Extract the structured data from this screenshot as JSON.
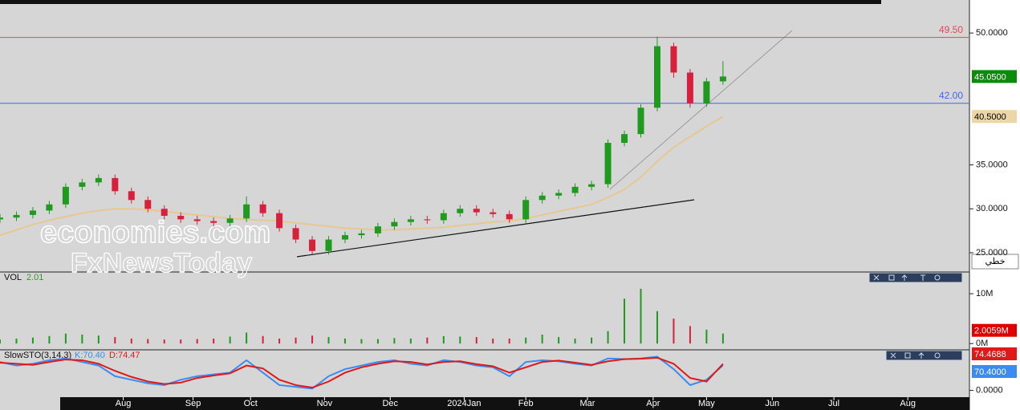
{
  "chart_data": [
    {
      "type": "candlestick",
      "watermark": [
        "economies.com",
        "FxNewsToday"
      ],
      "x": [
        0,
        4,
        8,
        12,
        16,
        20,
        24,
        28,
        32,
        36,
        40,
        44,
        48,
        52,
        56,
        60,
        64,
        68,
        72,
        76,
        80,
        84,
        88,
        92,
        96,
        100,
        104,
        108,
        112,
        116,
        120,
        124,
        128,
        132,
        136,
        140,
        144,
        148,
        152,
        156,
        160,
        164,
        168,
        172,
        176
      ],
      "open": [
        28.8,
        29,
        29.3,
        29.8,
        30.5,
        32.5,
        33,
        33.5,
        32,
        31,
        30,
        29.2,
        28.8,
        28.6,
        28.4,
        28.9,
        30.5,
        29.5,
        27.8,
        26.5,
        25.2,
        26.5,
        27,
        27.2,
        28,
        28.5,
        28.8,
        28.7,
        29.5,
        30,
        29.6,
        29.4,
        28.8,
        31,
        31.5,
        31.8,
        32.5,
        32.8,
        37.5,
        38.5,
        41.5,
        48.5,
        45.5,
        42,
        44.5
      ],
      "high": [
        29.4,
        29.7,
        30.2,
        30.9,
        32.9,
        33.4,
        33.9,
        33.9,
        32.4,
        31.4,
        30.4,
        29.6,
        29.2,
        29,
        29.3,
        31.4,
        30.9,
        29.9,
        28.2,
        26.9,
        26.9,
        27.4,
        27.6,
        28.4,
        28.9,
        29.2,
        29.2,
        29.9,
        30.4,
        30.4,
        30,
        29.8,
        31.4,
        31.9,
        32.2,
        32.9,
        33.2,
        37.9,
        38.9,
        41.9,
        49.6,
        48.9,
        45.9,
        44.9,
        46.8
      ],
      "low": [
        28.4,
        28.6,
        28.9,
        29.4,
        30.1,
        32.1,
        32.6,
        31.6,
        30.6,
        29.6,
        28.8,
        28.4,
        28.2,
        28,
        28,
        28.5,
        29.1,
        27.4,
        26.1,
        24.8,
        24.8,
        26.1,
        26.6,
        26.8,
        27.6,
        28.1,
        28.3,
        28.3,
        29.1,
        29.2,
        29,
        28.4,
        28.4,
        30.6,
        31.1,
        31.4,
        32.1,
        32.4,
        37.1,
        38.1,
        41.1,
        44.9,
        41.5,
        41.6,
        44.1
      ],
      "close": [
        29,
        29.3,
        29.8,
        30.5,
        32.5,
        33,
        33.5,
        32,
        31,
        30,
        29.2,
        28.8,
        28.6,
        28.4,
        28.9,
        30.5,
        29.5,
        27.8,
        26.5,
        25.2,
        26.5,
        27,
        27.2,
        28,
        28.5,
        28.8,
        28.7,
        29.5,
        30,
        29.6,
        29.4,
        28.8,
        31,
        31.5,
        31.8,
        32.5,
        32.8,
        37.5,
        38.5,
        41.5,
        48.5,
        45.5,
        42,
        44.5,
        45.05
      ],
      "up_color": "#1f9a1f",
      "down_color": "#d8203c",
      "ma": {
        "color": "#e6c890",
        "values": [
          27,
          27.6,
          28.2,
          28.7,
          29.1,
          29.5,
          29.8,
          30,
          30,
          29.9,
          29.7,
          29.5,
          29.3,
          29.1,
          28.9,
          28.8,
          28.7,
          28.6,
          28.4,
          28.2,
          28,
          27.8,
          27.7,
          27.6,
          27.6,
          27.7,
          27.8,
          27.9,
          28.1,
          28.3,
          28.5,
          28.6,
          28.9,
          29.3,
          29.7,
          30.1,
          30.5,
          31.3,
          32.2,
          33.6,
          35.4,
          37,
          38.2,
          39.4,
          40.5
        ]
      },
      "xlim": [
        0,
        236
      ],
      "ylim": [
        22.9,
        53.3
      ],
      "yticks": [
        {
          "value": 25,
          "label": "25.0000"
        },
        {
          "value": 30,
          "label": "30.0000"
        },
        {
          "value": 35,
          "label": "35.0000"
        },
        {
          "value": 50,
          "label": "50.0000"
        }
      ],
      "hlines": [
        {
          "value": 49.5,
          "label": "49.50",
          "color": "#e04858"
        },
        {
          "value": 42,
          "label": "42.00",
          "color": "#4466ee"
        }
      ],
      "tags": [
        {
          "value": 45.05,
          "label": "45.0500",
          "color": "#0b8a0b",
          "text_color": "#ffffff"
        },
        {
          "value": 40.5,
          "label": "40.5000",
          "color": "#ecd6a6",
          "text_color": "#000000"
        }
      ],
      "scale_button": "خطي"
    },
    {
      "type": "bar",
      "title": "VOL",
      "header_value": 2.01,
      "x": [
        0,
        4,
        8,
        12,
        16,
        20,
        24,
        28,
        32,
        36,
        40,
        44,
        48,
        52,
        56,
        60,
        64,
        68,
        72,
        76,
        80,
        84,
        88,
        92,
        96,
        100,
        104,
        108,
        112,
        116,
        120,
        124,
        128,
        132,
        136,
        140,
        144,
        148,
        152,
        156,
        160,
        164,
        168,
        172,
        176
      ],
      "values": [
        0.8,
        1,
        1.2,
        1.5,
        2,
        1.8,
        1.6,
        1.3,
        1,
        0.9,
        0.8,
        0.8,
        0.9,
        1,
        1.4,
        2.2,
        1.5,
        1,
        1.2,
        1.6,
        1.3,
        1,
        0.9,
        0.9,
        1.1,
        1,
        1.2,
        1.5,
        1.4,
        1.3,
        1,
        1,
        1.2,
        1.8,
        1.3,
        1,
        1.2,
        2.5,
        9,
        11,
        6.5,
        5,
        3.5,
        2.8,
        2.0059
      ],
      "xlim": [
        0,
        236
      ],
      "ylim": [
        -1.1,
        14.2
      ],
      "yticks": [
        {
          "value": 10,
          "label": "10M"
        },
        {
          "value": 0,
          "label": "0M"
        }
      ],
      "tags": [
        {
          "value": 2.0059,
          "label": "2.0059M",
          "color": "#e00000",
          "text_color": "#ffffff"
        }
      ]
    },
    {
      "type": "line",
      "title": "SlowSTO(3,14,3)",
      "x": [
        0,
        4,
        8,
        12,
        16,
        20,
        24,
        28,
        32,
        36,
        40,
        44,
        48,
        52,
        56,
        60,
        64,
        68,
        72,
        76,
        80,
        84,
        88,
        92,
        96,
        100,
        104,
        108,
        112,
        116,
        120,
        124,
        128,
        132,
        136,
        140,
        144,
        148,
        152,
        156,
        160,
        164,
        168,
        172,
        176
      ],
      "series": [
        {
          "legend": {
            "value": 70.4,
            "label": "K:70.40"
          },
          "color": "#3a8cf0",
          "tag": {
            "value": 70.4,
            "label": "70.4000"
          },
          "values": [
            80,
            70,
            75,
            85,
            90,
            80,
            70,
            40,
            30,
            20,
            15,
            30,
            40,
            45,
            50,
            85,
            50,
            15,
            10,
            5,
            40,
            60,
            70,
            80,
            85,
            75,
            70,
            85,
            80,
            70,
            65,
            40,
            80,
            85,
            82,
            75,
            70,
            90,
            88,
            90,
            95,
            60,
            15,
            30,
            70.4
          ]
        },
        {
          "legend": {
            "value": 74.47,
            "label": "D:74.47"
          },
          "color": "#e01818",
          "tag": {
            "value": 74.4688,
            "label": "74.4688"
          },
          "values": [
            78,
            75,
            72,
            80,
            87,
            85,
            75,
            55,
            38,
            25,
            18,
            22,
            35,
            42,
            48,
            70,
            62,
            30,
            15,
            8,
            25,
            50,
            65,
            75,
            82,
            80,
            73,
            80,
            82,
            74,
            68,
            50,
            65,
            80,
            84,
            78,
            72,
            82,
            88,
            89,
            92,
            75,
            35,
            25,
            74.47
          ]
        }
      ],
      "xlim": [
        0,
        236
      ],
      "ylim": [
        -19,
        112
      ],
      "yticks": [
        {
          "value": 0,
          "label": "0.0000"
        }
      ],
      "xticks": [
        {
          "value": 30,
          "label": "Aug"
        },
        {
          "value": 47,
          "label": "Sep"
        },
        {
          "value": 61,
          "label": "Oct"
        },
        {
          "value": 79,
          "label": "Nov"
        },
        {
          "value": 95,
          "label": "Dec"
        },
        {
          "value": 113,
          "label": "2024Jan"
        },
        {
          "value": 128,
          "label": "Feb"
        },
        {
          "value": 143,
          "label": "Mar"
        },
        {
          "value": 159,
          "label": "Apr"
        },
        {
          "value": 172,
          "label": "May"
        },
        {
          "value": 188,
          "label": "Jun"
        },
        {
          "value": 203,
          "label": "Jul"
        },
        {
          "value": 221,
          "label": "Aug"
        }
      ]
    }
  ]
}
